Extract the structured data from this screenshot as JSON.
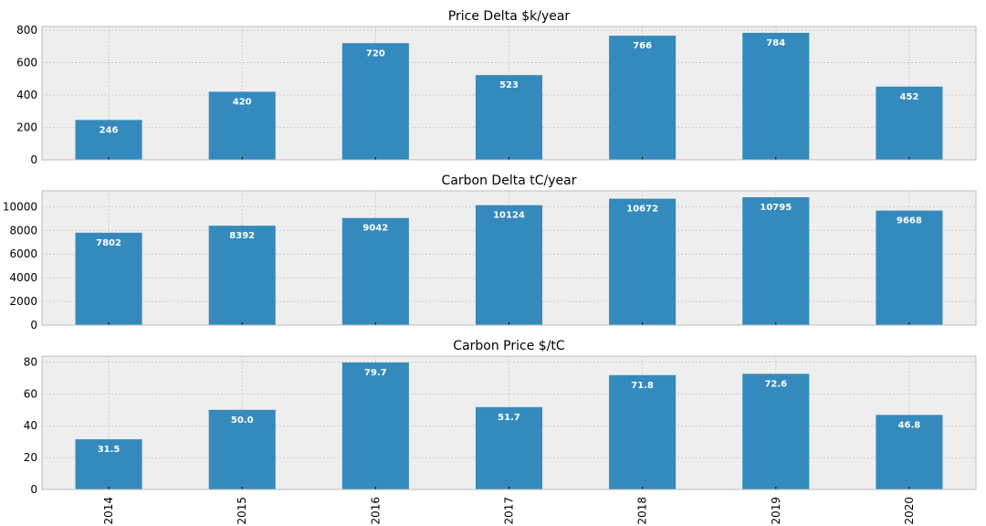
{
  "chart_data": [
    {
      "type": "bar",
      "title": "Price Delta $k/year",
      "categories": [
        "2014",
        "2015",
        "2016",
        "2017",
        "2018",
        "2019",
        "2020"
      ],
      "values": [
        246,
        420,
        720,
        523,
        766,
        784,
        452
      ],
      "value_labels": [
        "246",
        "420",
        "720",
        "523",
        "766",
        "784",
        "452"
      ],
      "ylim": [
        0,
        823
      ],
      "yticks": [
        0,
        200,
        400,
        600,
        800
      ],
      "show_xticklabels": false,
      "grid": true
    },
    {
      "type": "bar",
      "title": "Carbon Delta tC/year",
      "categories": [
        "2014",
        "2015",
        "2016",
        "2017",
        "2018",
        "2019",
        "2020"
      ],
      "values": [
        7802,
        8392,
        9042,
        10124,
        10672,
        10795,
        9668
      ],
      "value_labels": [
        "7802",
        "8392",
        "9042",
        "10124",
        "10672",
        "10795",
        "9668"
      ],
      "ylim": [
        0,
        11335
      ],
      "yticks": [
        0,
        2000,
        4000,
        6000,
        8000,
        10000
      ],
      "show_xticklabels": false,
      "grid": true
    },
    {
      "type": "bar",
      "title": "Carbon Price $/tC",
      "categories": [
        "2014",
        "2015",
        "2016",
        "2017",
        "2018",
        "2019",
        "2020"
      ],
      "values": [
        31.5,
        50.0,
        79.7,
        51.7,
        71.8,
        72.6,
        46.8
      ],
      "value_labels": [
        "31.5",
        "50.0",
        "79.7",
        "51.7",
        "71.8",
        "72.6",
        "46.8"
      ],
      "ylim": [
        0,
        83.7
      ],
      "yticks": [
        0,
        20,
        40,
        60,
        80
      ],
      "show_xticklabels": true,
      "grid": true
    }
  ],
  "style": {
    "bar_color": "#348abd",
    "plot_bg": "#eeeeee",
    "grid_color": "#c8c8c8",
    "spine_color": "#bcbcbc"
  }
}
